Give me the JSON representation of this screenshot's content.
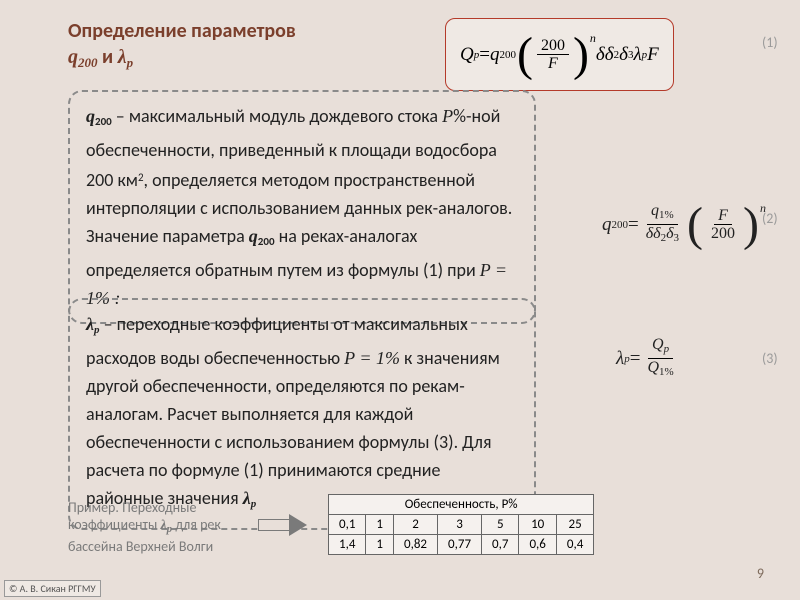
{
  "title": {
    "main": "Определение параметров",
    "line2_pre": "",
    "q": "q",
    "q_sub": "200",
    "and": "  и   ",
    "lambda": "λ",
    "lambda_sub": "p"
  },
  "eq1": {
    "Q": "Q",
    "Qs": "p",
    "eq": " = ",
    "q": "q",
    "qs": "200",
    "frac_top": "200",
    "frac_bot": "F",
    "deltas": "δδ",
    "d2": "2",
    "d3_pre": "δ",
    "d3": "3",
    "lam": "λ",
    "lams": "p",
    "F": "F",
    "n": "n",
    "num": "(1)"
  },
  "box1": {
    "pre": "",
    "q": "q",
    "qs": "200",
    "t1": "  – максимальный модуль дождевого стока  ",
    "P": "P",
    "t2": "%-ной обеспеченности, приведенный к площади водосбора 200 км",
    "sq": "2",
    "t3": ", определяется методом пространственной интерполяции с использованием данных рек-аналогов. Значение параметра ",
    "q2": "q",
    "q2s": "200",
    "t4": " на реках-аналогах определяется обратным путем из формулы (1) при  ",
    "Peq": "P =  1% :"
  },
  "eq2": {
    "q": "q",
    "qs": "200",
    "eq": " = ",
    "top_q": "q",
    "top_qs": "1%",
    "bot": "δδ",
    "b2": "2",
    "b3p": "δ",
    "b3": "3",
    "frac_top2": "F",
    "frac_bot2": "200",
    "n": "n",
    "num": "(2)"
  },
  "box2": {
    "lam": "λ",
    "lams": "p",
    "t1": " – переходные коэффициенты от максимальных расходов воды обеспеченностью  ",
    "Peq": "P = 1%",
    "t2": "   к значениям другой обеспеченности, определяются по рекам-аналогам. Расчет выполняется для каждой обеспеченности с использованием формулы (3). Для расчета по формуле (1) принимаются средние районные значения ",
    "lam2": "λ",
    "lam2s": "p"
  },
  "eq3": {
    "lam": "λ",
    "lams": "p",
    "eq": " = ",
    "top": "Q",
    "tops": "p",
    "bot": "Q",
    "bots": "1%",
    "num": "(3)"
  },
  "example": {
    "t1": "Пример. Переходные коэффициенты ",
    "lam": "λ",
    "lams": "p",
    "t2": " для  рек бассейна Верхней Волги"
  },
  "table": {
    "caption": "Обеспеченность, P%",
    "headers": [
      "0,1",
      "1",
      "2",
      "3",
      "5",
      "10",
      "25"
    ],
    "row": [
      "1,4",
      "1",
      "0,82",
      "0,77",
      "0,7",
      "0,6",
      "0,4"
    ]
  },
  "page_num": "9",
  "copyright": "© А. В. Сикан РГГМУ",
  "style": {
    "bg": "#e8dfd9",
    "accent": "#7b3f2c",
    "border": "#b43a2a"
  }
}
